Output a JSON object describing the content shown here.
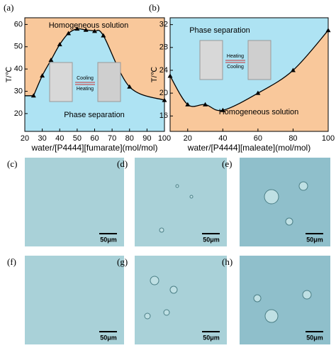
{
  "chart_data": [
    {
      "type": "line",
      "label": "(a)",
      "xlabel": "water/[P4444][fumarate](mol/mol)",
      "ylabel": "T/℃",
      "upper_region": "Homogeneous solution",
      "lower_region": "Phase separation",
      "upper_color": "#f9c89b",
      "lower_color": "#aee3f3",
      "inset_top": "Cooling",
      "inset_bottom": "Heating",
      "x": [
        25,
        30,
        35,
        40,
        45,
        50,
        55,
        60,
        65,
        80,
        100
      ],
      "series": [
        {
          "name": "T",
          "color": "#000000",
          "values": [
            28,
            37,
            44,
            51,
            56,
            58,
            57.5,
            57,
            55,
            32,
            26
          ]
        }
      ],
      "xlim": [
        20,
        100
      ],
      "xticks": [
        20,
        30,
        40,
        50,
        60,
        70,
        80,
        90,
        100
      ],
      "ylim": [
        12,
        63
      ],
      "yticks": [
        20,
        30,
        40,
        50,
        60
      ]
    },
    {
      "type": "line",
      "label": "(b)",
      "xlabel": "water/[P4444][maleate](mol/mol)",
      "ylabel": "T/℃",
      "upper_region": "Phase separation",
      "lower_region": "Homogeneous solution",
      "upper_color": "#aee3f3",
      "lower_color": "#f9c89b",
      "inset_top": "Heating",
      "inset_bottom": "Cooling",
      "x": [
        10,
        20,
        30,
        40,
        60,
        80,
        100
      ],
      "series": [
        {
          "name": "T",
          "color": "#000000",
          "values": [
            23,
            18,
            18,
            17,
            20,
            24,
            31
          ]
        }
      ],
      "xlim": [
        10,
        100
      ],
      "xticks": [
        20,
        40,
        60,
        80,
        100
      ],
      "ylim": [
        13.3,
        33.2
      ],
      "yticks": [
        16,
        20,
        24,
        28,
        32
      ]
    }
  ],
  "panels": [
    {
      "label": "(c)",
      "scale": "50μm"
    },
    {
      "label": "(d)",
      "scale": "50μm"
    },
    {
      "label": "(e)",
      "scale": "50μm"
    },
    {
      "label": "(f)",
      "scale": "50μm"
    },
    {
      "label": "(g)",
      "scale": "50μm"
    },
    {
      "label": "(h)",
      "scale": "50μm"
    }
  ]
}
